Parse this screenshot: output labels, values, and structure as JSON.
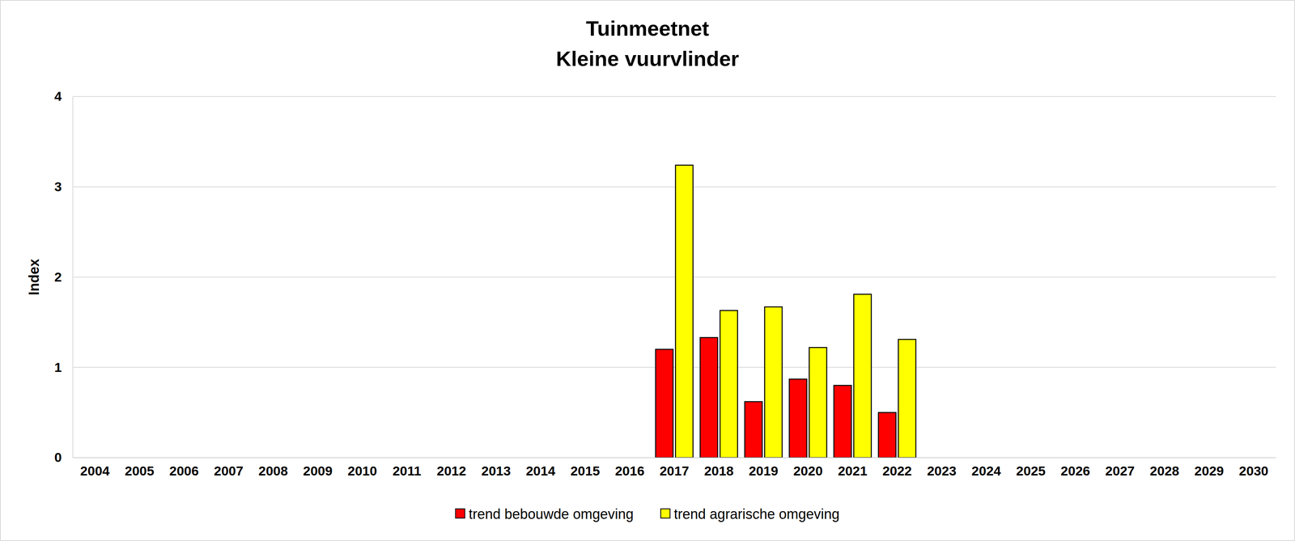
{
  "chart_data": {
    "type": "bar",
    "title": "Tuinmeetnet",
    "subtitle": "Kleine vuurvlinder",
    "y_label": "Index",
    "categories": [
      "2004",
      "2005",
      "2006",
      "2007",
      "2008",
      "2009",
      "2010",
      "2011",
      "2012",
      "2013",
      "2014",
      "2015",
      "2016",
      "2017",
      "2018",
      "2019",
      "2020",
      "2021",
      "2022",
      "2023",
      "2024",
      "2025",
      "2026",
      "2027",
      "2028",
      "2029",
      "2030"
    ],
    "series": [
      {
        "name": "trend bebouwde omgeving",
        "color": "#ff0000",
        "values": [
          null,
          null,
          null,
          null,
          null,
          null,
          null,
          null,
          null,
          null,
          null,
          null,
          null,
          1.2,
          1.33,
          0.62,
          0.87,
          0.8,
          0.5,
          null,
          null,
          null,
          null,
          null,
          null,
          null,
          null
        ]
      },
      {
        "name": "trend agrarische omgeving",
        "color": "#ffff00",
        "values": [
          null,
          null,
          null,
          null,
          null,
          null,
          null,
          null,
          null,
          null,
          null,
          null,
          null,
          3.24,
          1.63,
          1.67,
          1.22,
          1.81,
          1.31,
          null,
          null,
          null,
          null,
          null,
          null,
          null,
          null
        ]
      }
    ],
    "ylim": [
      0,
      4
    ],
    "yticks": [
      0,
      1,
      2,
      3,
      4
    ],
    "grid": true,
    "legend": "bottom"
  }
}
